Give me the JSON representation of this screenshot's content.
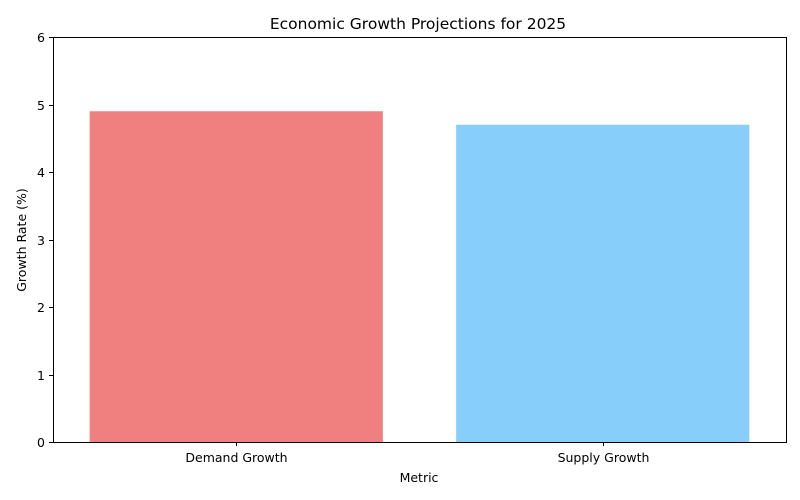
{
  "chart_data": {
    "type": "bar",
    "title": "Economic Growth Projections for 2025",
    "xlabel": "Metric",
    "ylabel": "Growth Rate (%)",
    "categories": [
      "Demand Growth",
      "Supply Growth"
    ],
    "values": [
      4.9,
      4.7
    ],
    "colors": [
      "#f08080",
      "#87cefa"
    ],
    "ylim": [
      0,
      6
    ],
    "yticks": [
      0,
      1,
      2,
      3,
      4,
      5,
      6
    ],
    "grid": false,
    "legend": "none"
  }
}
